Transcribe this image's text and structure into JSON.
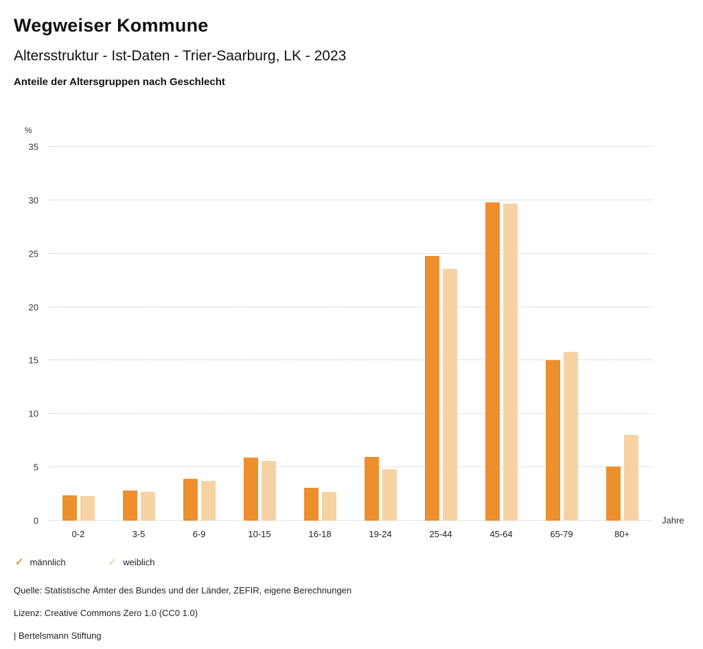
{
  "header": {
    "title": "Wegweiser Kommune",
    "subtitle": "Altersstruktur - Ist-Daten - Trier-Saarburg, LK - 2023",
    "chart_heading": "Anteile der Altersgruppen nach Geschlecht"
  },
  "chart_data": {
    "type": "bar",
    "categories": [
      "0-2",
      "3-5",
      "6-9",
      "10-15",
      "16-18",
      "19-24",
      "25-44",
      "45-64",
      "65-79",
      "80+"
    ],
    "series": [
      {
        "name": "männlich",
        "color": "#ED8F2D",
        "values": [
          2.4,
          2.8,
          3.9,
          5.9,
          3.1,
          6.0,
          24.8,
          29.8,
          15.0,
          5.1
        ]
      },
      {
        "name": "weiblich",
        "color": "#F7D2A2",
        "values": [
          2.3,
          2.7,
          3.7,
          5.6,
          2.7,
          4.8,
          23.6,
          29.7,
          15.8,
          8.0
        ]
      }
    ],
    "title": "Anteile der Altersgruppen nach Geschlecht",
    "xlabel": "Jahre",
    "ylabel": "%",
    "ylim": [
      0,
      35
    ],
    "yticks": [
      0,
      5,
      10,
      15,
      20,
      25,
      30,
      35
    ],
    "grid": true,
    "legend_position": "bottom"
  },
  "legend": {
    "items": [
      {
        "label": "männlich",
        "color": "#ED8F2D"
      },
      {
        "label": "weiblich",
        "color": "#F7D2A2"
      }
    ]
  },
  "footer": {
    "source": "Quelle: Statistische Ämter des Bundes und der Länder, ZEFIR, eigene Berechnungen",
    "license": "Lizenz: Creative Commons Zero 1.0 (CC0 1.0)",
    "attribution": "| Bertelsmann Stiftung"
  }
}
